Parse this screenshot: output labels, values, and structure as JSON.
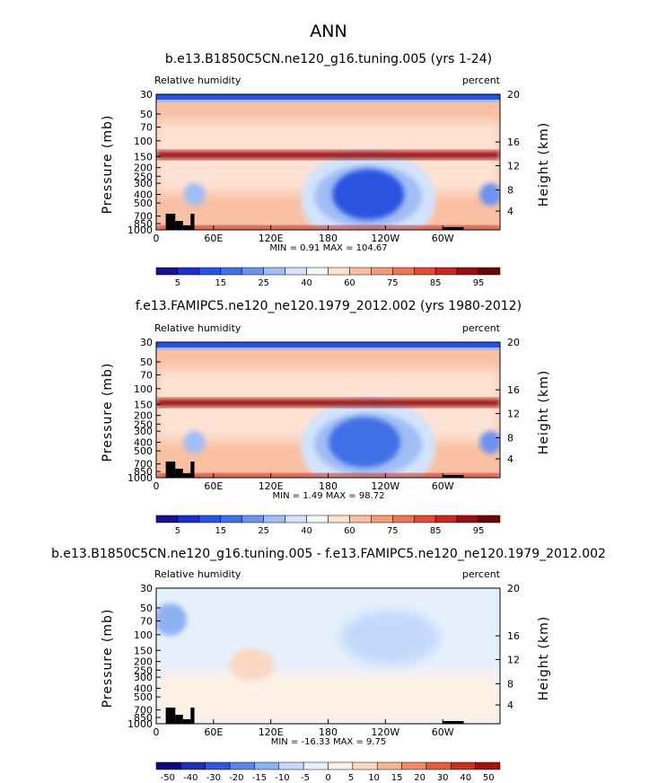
{
  "figure": {
    "title": "ANN",
    "colors": {
      "abs_scale": [
        "#1a0f8f",
        "#1f2fc8",
        "#2a52e0",
        "#3f6fe6",
        "#6d93ef",
        "#a0bdf5",
        "#d2e3fb",
        "#f3f7fe",
        "#fde2d4",
        "#f9c0a3",
        "#f49c7a",
        "#ec7353",
        "#df4b34",
        "#c6281f",
        "#9a1010",
        "#6e0505"
      ],
      "diff_scale": [
        "#0b0b7a",
        "#1e2fb0",
        "#2f57d8",
        "#5a84e8",
        "#8eb1f2",
        "#c3d8fa",
        "#e6f0fd",
        "#fdf0e4",
        "#fbd8c2",
        "#f7b497",
        "#ef8a68",
        "#e25d41",
        "#c9311f",
        "#9f130d"
      ]
    }
  },
  "chart_data": [
    {
      "type": "heatmap",
      "title": "b.e13.B1850C5CN.ne120_g16.tuning.005 (yrs 1-24)",
      "left_label": "Relative humidity",
      "right_label": "percent",
      "xlabel": "",
      "ylabel": "Pressure (mb)",
      "y2label": "Height (km)",
      "xticks": [
        "0",
        "60E",
        "120E",
        "180",
        "120W",
        "60W"
      ],
      "yticks": [
        "30",
        "50",
        "70",
        "100",
        "150",
        "200",
        "250",
        "300",
        "400",
        "500",
        "700",
        "850",
        "1000"
      ],
      "y2ticks": [
        "20",
        "16",
        "12",
        "8",
        "4"
      ],
      "xlim": [
        0,
        360
      ],
      "ylim": [
        1000,
        30
      ],
      "stats": "MIN =    0.91   MAX = 104.67",
      "colorbar_labels": [
        "5",
        "15",
        "25",
        "40",
        "60",
        "75",
        "85",
        "95"
      ],
      "blue_centers": [
        {
          "lon": 40,
          "p": 400,
          "level": 5
        },
        {
          "lon": 222,
          "p": 400,
          "level": 2
        },
        {
          "lon": 350,
          "p": 400,
          "level": 4
        }
      ],
      "red_layers": [
        {
          "p_top": 130,
          "p_bottom": 160,
          "level": 14
        },
        {
          "p_top": 900,
          "p_bottom": 1000,
          "level": 13
        }
      ]
    },
    {
      "type": "heatmap",
      "title": "f.e13.FAMIPC5.ne120_ne120.1979_2012.002 (yrs 1980-2012)",
      "left_label": "Relative humidity",
      "right_label": "percent",
      "xlabel": "",
      "ylabel": "Pressure (mb)",
      "y2label": "Height (km)",
      "xticks": [
        "0",
        "60E",
        "120E",
        "180",
        "120W",
        "60W"
      ],
      "yticks": [
        "30",
        "50",
        "70",
        "100",
        "150",
        "200",
        "250",
        "300",
        "400",
        "500",
        "700",
        "850",
        "1000"
      ],
      "y2ticks": [
        "20",
        "16",
        "12",
        "8",
        "4"
      ],
      "xlim": [
        0,
        360
      ],
      "ylim": [
        1000,
        30
      ],
      "stats": "MIN =    1.49   MAX =  98.72",
      "colorbar_labels": [
        "5",
        "15",
        "25",
        "40",
        "60",
        "75",
        "85",
        "95"
      ],
      "blue_centers": [
        {
          "lon": 40,
          "p": 400,
          "level": 5
        },
        {
          "lon": 218,
          "p": 400,
          "level": 3
        },
        {
          "lon": 350,
          "p": 400,
          "level": 4
        }
      ],
      "red_layers": [
        {
          "p_top": 130,
          "p_bottom": 160,
          "level": 14
        },
        {
          "p_top": 900,
          "p_bottom": 1000,
          "level": 13
        }
      ]
    },
    {
      "type": "heatmap",
      "title": "b.e13.B1850C5CN.ne120_g16.tuning.005 - f.e13.FAMIPC5.ne120_ne120.1979_2012.002",
      "left_label": "Relative humidity",
      "right_label": "percent",
      "xlabel": "",
      "ylabel": "Pressure (mb)",
      "y2label": "Height (km)",
      "xticks": [
        "0",
        "60E",
        "120E",
        "180",
        "120W",
        "60W"
      ],
      "yticks": [
        "30",
        "50",
        "70",
        "100",
        "150",
        "200",
        "250",
        "300",
        "400",
        "500",
        "700",
        "850",
        "1000"
      ],
      "y2ticks": [
        "20",
        "16",
        "12",
        "8",
        "4"
      ],
      "xlim": [
        0,
        360
      ],
      "ylim": [
        1000,
        30
      ],
      "stats": "MIN = -16.33   MAX =    9.75",
      "colorbar_labels": [
        "-50",
        "-40",
        "-30",
        "-20",
        "-15",
        "-10",
        "-5",
        "0",
        "5",
        "10",
        "15",
        "20",
        "30",
        "40",
        "50"
      ]
    }
  ]
}
